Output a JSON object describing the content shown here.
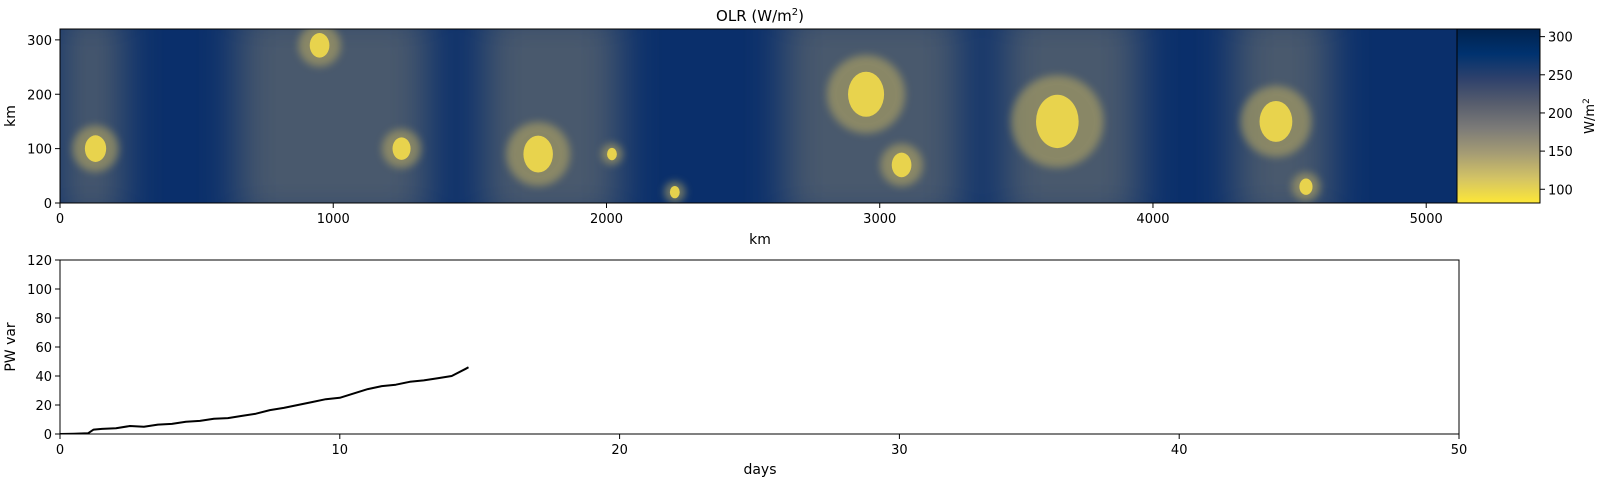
{
  "chart_data": [
    {
      "type": "heatmap",
      "title": "OLR (W/m",
      "title_superscript": "2",
      "title_suffix": ")",
      "xlabel": "km",
      "ylabel": "km",
      "xlim": [
        0,
        5120
      ],
      "ylim": [
        0,
        320
      ],
      "xticks": [
        0,
        1000,
        2000,
        3000,
        4000,
        5000
      ],
      "yticks": [
        0,
        100,
        200,
        300
      ],
      "colormap": "cividis_r",
      "colorbar": {
        "label": "W/m",
        "label_superscript": "2",
        "range": [
          82,
          310
        ],
        "ticks": [
          100,
          150,
          200,
          250,
          300
        ],
        "colors": [
          "#fde737",
          "#d3c365",
          "#a59c74",
          "#7c7b78",
          "#575d6d",
          "#2e416c",
          "#00326f",
          "#00224e"
        ]
      },
      "convective_clusters": [
        {
          "x": 130,
          "y": 100,
          "size": 130
        },
        {
          "x": 950,
          "y": 290,
          "size": 120
        },
        {
          "x": 1250,
          "y": 100,
          "size": 110
        },
        {
          "x": 1750,
          "y": 90,
          "size": 180
        },
        {
          "x": 2020,
          "y": 90,
          "size": 60
        },
        {
          "x": 2250,
          "y": 20,
          "size": 60
        },
        {
          "x": 2950,
          "y": 200,
          "size": 220
        },
        {
          "x": 3080,
          "y": 70,
          "size": 120
        },
        {
          "x": 3650,
          "y": 150,
          "size": 260
        },
        {
          "x": 4450,
          "y": 150,
          "size": 200
        },
        {
          "x": 4560,
          "y": 30,
          "size": 80
        }
      ],
      "moist_bands": [
        {
          "x_start": 0,
          "x_end": 230
        },
        {
          "x_start": 650,
          "x_end": 1350
        },
        {
          "x_start": 1550,
          "x_end": 2050
        },
        {
          "x_start": 2650,
          "x_end": 3300
        },
        {
          "x_start": 3450,
          "x_end": 3950
        },
        {
          "x_start": 4300,
          "x_end": 4650
        }
      ]
    },
    {
      "type": "line",
      "xlabel": "days",
      "ylabel": "PW var",
      "xlim": [
        0,
        50
      ],
      "ylim": [
        0,
        120
      ],
      "xticks": [
        0,
        10,
        20,
        30,
        40,
        50
      ],
      "yticks": [
        0,
        20,
        40,
        60,
        80,
        100,
        120
      ],
      "line_color": "#000000",
      "series": [
        {
          "x": [
            0,
            0.5,
            1.0,
            1.2,
            1.5,
            2.0,
            2.5,
            3.0,
            3.5,
            4.0,
            4.5,
            5.0,
            5.5,
            6.0,
            6.5,
            7.0,
            7.5,
            8.0,
            8.5,
            9.0,
            9.5,
            10.0,
            10.5,
            11.0,
            11.5,
            12.0,
            12.5,
            13.0,
            13.5,
            14.0,
            14.5,
            14.6
          ],
          "y": [
            0,
            0.2,
            0.5,
            3.0,
            3.5,
            4.0,
            5.5,
            5.0,
            6.5,
            7.0,
            8.5,
            9.0,
            10.5,
            11.0,
            12.5,
            14.0,
            16.5,
            18.0,
            20.0,
            22.0,
            24.0,
            25.0,
            28.0,
            31.0,
            33.0,
            34.0,
            36.0,
            37.0,
            38.5,
            40.0,
            45.0,
            46.0
          ]
        }
      ]
    }
  ]
}
